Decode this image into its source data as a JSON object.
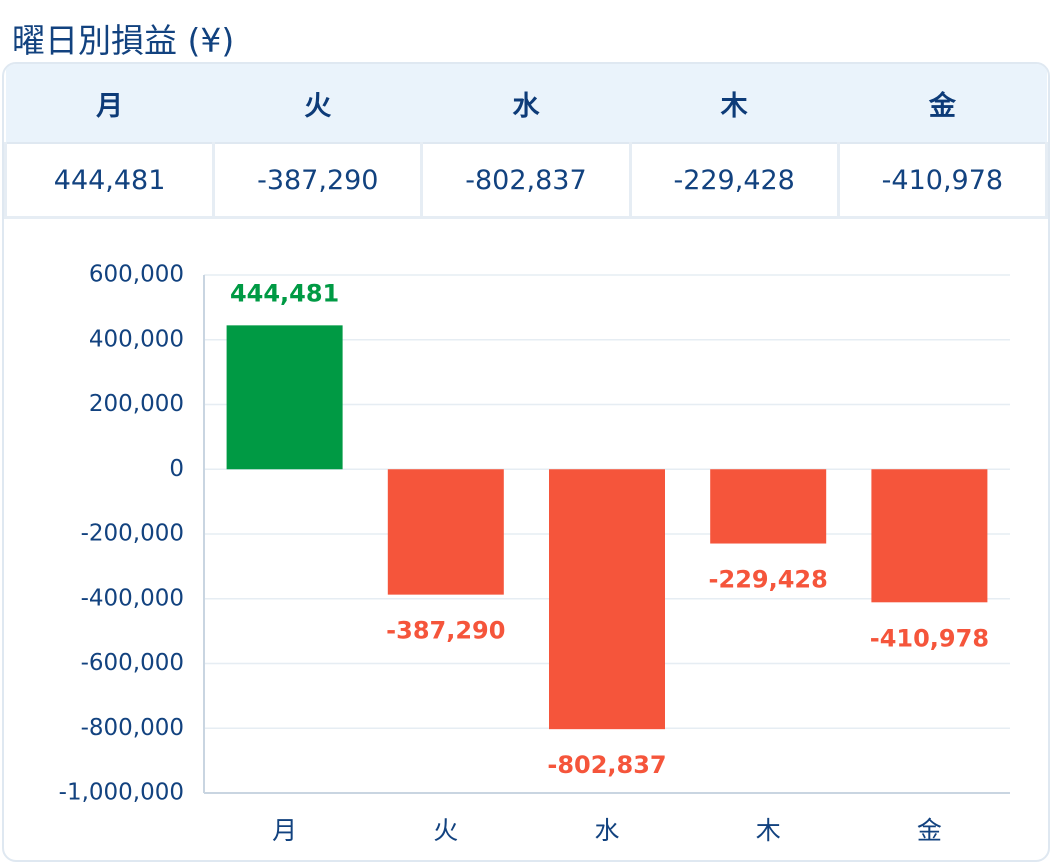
{
  "title": "曜日別損益 (¥)",
  "table": {
    "header": [
      "月",
      "火",
      "水",
      "木",
      "金"
    ],
    "rows": [
      [
        "444,481",
        "-387,290",
        "-802,837",
        "-229,428",
        "-410,978"
      ]
    ]
  },
  "chart_data": {
    "type": "bar",
    "categories": [
      "月",
      "火",
      "水",
      "木",
      "金"
    ],
    "values": [
      444481,
      -387290,
      -802837,
      -229428,
      -410978
    ],
    "value_labels": [
      "444,481",
      "-387,290",
      "-802,837",
      "-229,428",
      "-410,978"
    ],
    "positive_color": "#009a44",
    "negative_color": "#f5553b",
    "ylim": [
      -1000000,
      600000
    ],
    "yticks": [
      {
        "value": -1000000,
        "label": "-1,000,000"
      },
      {
        "value": -800000,
        "label": "-800,000"
      },
      {
        "value": -600000,
        "label": "-600,000"
      },
      {
        "value": -400000,
        "label": "-400,000"
      },
      {
        "value": -200000,
        "label": "-200,000"
      },
      0,
      {
        "value": 200000,
        "label": "200,000"
      },
      {
        "value": 400000,
        "label": "400,000"
      },
      {
        "value": 600000,
        "label": "600,000"
      }
    ],
    "grid": true
  }
}
